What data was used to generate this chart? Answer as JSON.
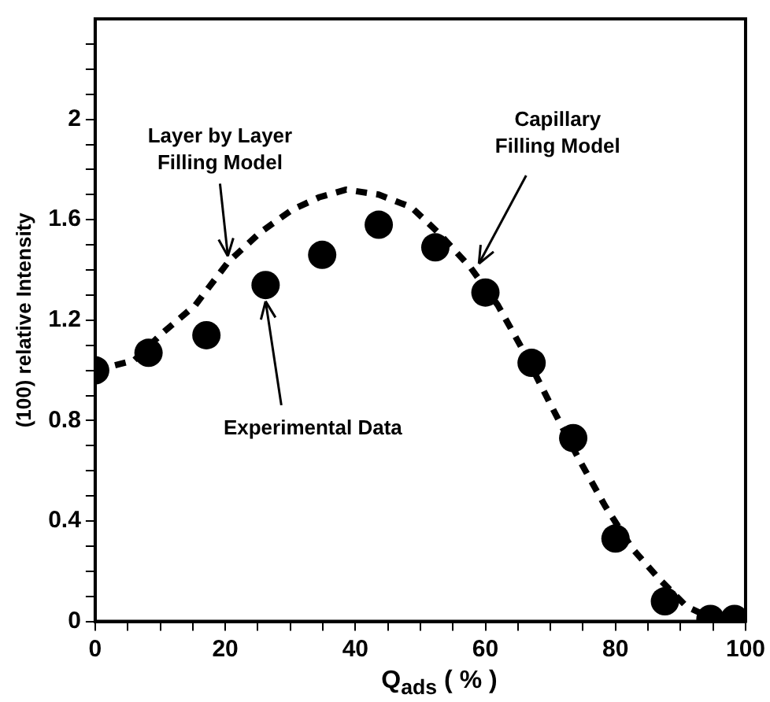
{
  "chart_data": {
    "type": "scatter",
    "xlabel": "Q$_{ads}$ ( % )",
    "ylabel": "(100) relative Intensity",
    "xlim": [
      0,
      100
    ],
    "ylim": [
      0,
      2.4
    ],
    "xticks": [
      0,
      {
        "value": 5,
        "label": null
      },
      {
        "value": 10,
        "label": null
      },
      {
        "value": 15,
        "label": null
      },
      20,
      {
        "value": 25,
        "label": null
      },
      {
        "value": 30,
        "label": null
      },
      {
        "value": 35,
        "label": null
      },
      40,
      {
        "value": 45,
        "label": null
      },
      {
        "value": 50,
        "label": null
      },
      {
        "value": 55,
        "label": null
      },
      60,
      {
        "value": 65,
        "label": null
      },
      {
        "value": 70,
        "label": null
      },
      {
        "value": 75,
        "label": null
      },
      80,
      {
        "value": 85,
        "label": null
      },
      {
        "value": 90,
        "label": null
      },
      {
        "value": 95,
        "label": null
      },
      100
    ],
    "yticks": [
      0,
      {
        "value": 0.1,
        "label": null
      },
      {
        "value": 0.2,
        "label": null
      },
      {
        "value": 0.3,
        "label": null
      },
      0.4,
      {
        "value": 0.5,
        "label": null
      },
      {
        "value": 0.6,
        "label": null
      },
      {
        "value": 0.7,
        "label": null
      },
      0.8,
      {
        "value": 0.9,
        "label": null
      },
      {
        "value": 1.0,
        "label": null
      },
      {
        "value": 1.1,
        "label": null
      },
      1.2,
      {
        "value": 1.3,
        "label": null
      },
      {
        "value": 1.4,
        "label": null
      },
      {
        "value": 1.5,
        "label": null
      },
      1.6,
      {
        "value": 1.7,
        "label": null
      },
      {
        "value": 1.8,
        "label": null
      },
      {
        "value": 1.9,
        "label": null
      },
      2,
      {
        "value": 2.1,
        "label": null
      },
      {
        "value": 2.2,
        "label": null
      },
      {
        "value": 2.3,
        "label": null
      }
    ],
    "grid": false,
    "legend": false,
    "series": [
      {
        "color": "#000000",
        "marker": "circle",
        "x": [
          0,
          8.2,
          17.1,
          26.2,
          34.9,
          43.6,
          52.3,
          60,
          67.1,
          73.5,
          80,
          87.6,
          94.6,
          98.3
        ],
        "values": [
          1.0,
          1.07,
          1.14,
          1.34,
          1.46,
          1.58,
          1.49,
          1.31,
          1.03,
          0.73,
          0.33,
          0.08,
          0.01,
          0.01
        ]
      },
      {
        "type": "line",
        "color": "#000000",
        "marker": "none",
        "line_style": "dashed",
        "x": [
          0,
          6,
          10.4,
          15.4,
          20.4,
          25.4,
          30.3,
          34.5,
          38.6,
          43.6,
          48.6,
          52.7,
          57.7,
          61.9,
          66,
          70.1,
          74.3,
          78.4,
          82.6,
          86.7,
          90.9,
          95,
          100
        ],
        "values": [
          1.0,
          1.04,
          1.15,
          1.26,
          1.43,
          1.55,
          1.64,
          1.69,
          1.72,
          1.7,
          1.65,
          1.55,
          1.41,
          1.26,
          1.07,
          0.86,
          0.65,
          0.46,
          0.29,
          0.17,
          0.06,
          0.01,
          0.0
        ]
      }
    ],
    "annotations": [
      {
        "text": "Layer by Layer\nFilling Model",
        "x": 20.4,
        "y": 1.43
      },
      {
        "text": "Capillary\nFilling Model",
        "x": 59,
        "y": 1.4
      },
      {
        "text": "Experimental Data",
        "x": 26.2,
        "y": 1.3
      }
    ]
  }
}
